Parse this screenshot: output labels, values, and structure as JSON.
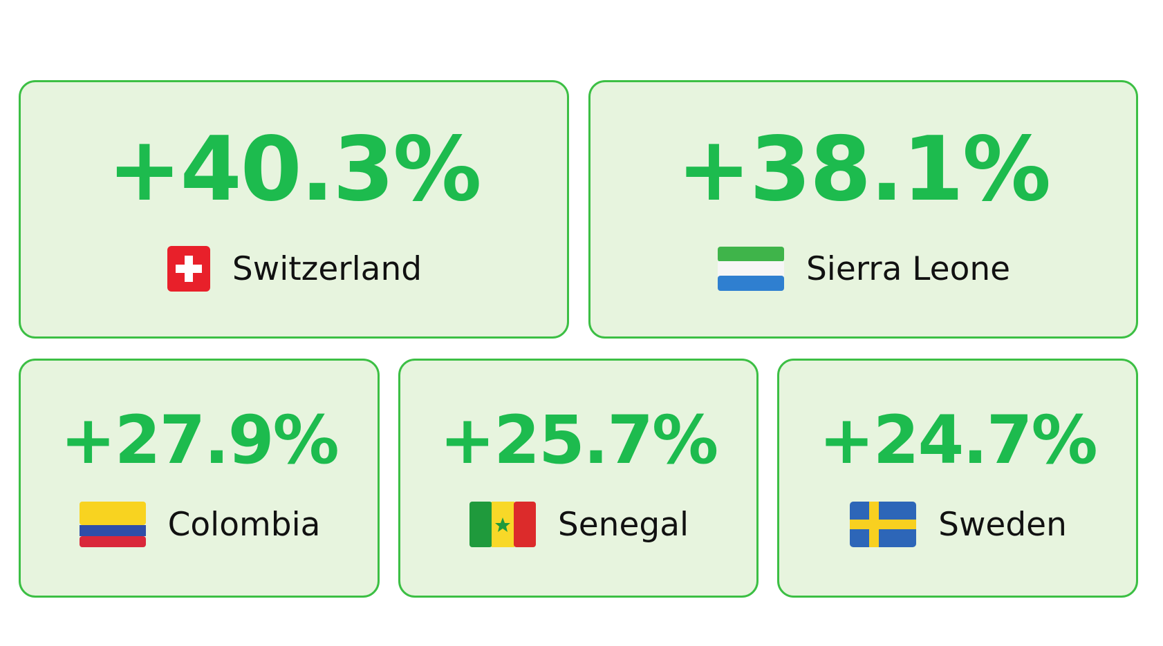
{
  "cards": [
    {
      "value": "+40.3%",
      "country": "Switzerland"
    },
    {
      "value": "+38.1%",
      "country": "Sierra Leone"
    },
    {
      "value": "+27.9%",
      "country": "Colombia"
    },
    {
      "value": "+25.7%",
      "country": "Senegal"
    },
    {
      "value": "+24.7%",
      "country": "Sweden"
    }
  ]
}
